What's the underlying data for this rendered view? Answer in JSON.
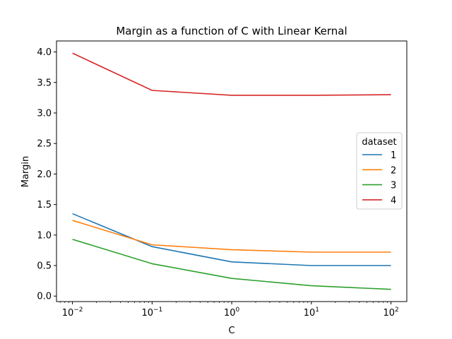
{
  "chart_data": {
    "type": "line",
    "title": "Margin as a function of C with Linear Kernal",
    "xlabel": "C",
    "ylabel": "Margin",
    "xscale": "log",
    "x": [
      0.01,
      0.1,
      1,
      10,
      100
    ],
    "xlim": [
      0.0063,
      158
    ],
    "ylim": [
      -0.09,
      4.18
    ],
    "x_ticks": [
      {
        "value": 0.01,
        "base": "10",
        "exp": "−2"
      },
      {
        "value": 0.1,
        "base": "10",
        "exp": "−1"
      },
      {
        "value": 1,
        "base": "10",
        "exp": "0"
      },
      {
        "value": 10,
        "base": "10",
        "exp": "1"
      },
      {
        "value": 100,
        "base": "10",
        "exp": "2"
      }
    ],
    "y_ticks": [
      {
        "value": 0.0,
        "label": "0.0"
      },
      {
        "value": 0.5,
        "label": "0.5"
      },
      {
        "value": 1.0,
        "label": "1.0"
      },
      {
        "value": 1.5,
        "label": "1.5"
      },
      {
        "value": 2.0,
        "label": "2.0"
      },
      {
        "value": 2.5,
        "label": "2.5"
      },
      {
        "value": 3.0,
        "label": "3.0"
      },
      {
        "value": 3.5,
        "label": "3.5"
      },
      {
        "value": 4.0,
        "label": "4.0"
      }
    ],
    "legend": {
      "title": "dataset",
      "placement": "center-right"
    },
    "grid": false,
    "series": [
      {
        "name": "1",
        "color": "#1f77b4",
        "values": [
          1.35,
          0.81,
          0.56,
          0.5,
          0.5
        ]
      },
      {
        "name": "2",
        "color": "#ff7f0e",
        "values": [
          1.24,
          0.84,
          0.76,
          0.72,
          0.72
        ]
      },
      {
        "name": "3",
        "color": "#2ca02c",
        "values": [
          0.93,
          0.53,
          0.29,
          0.17,
          0.11
        ]
      },
      {
        "name": "4",
        "color": "#d62728",
        "values": [
          3.98,
          3.37,
          3.29,
          3.29,
          3.3
        ]
      }
    ]
  }
}
